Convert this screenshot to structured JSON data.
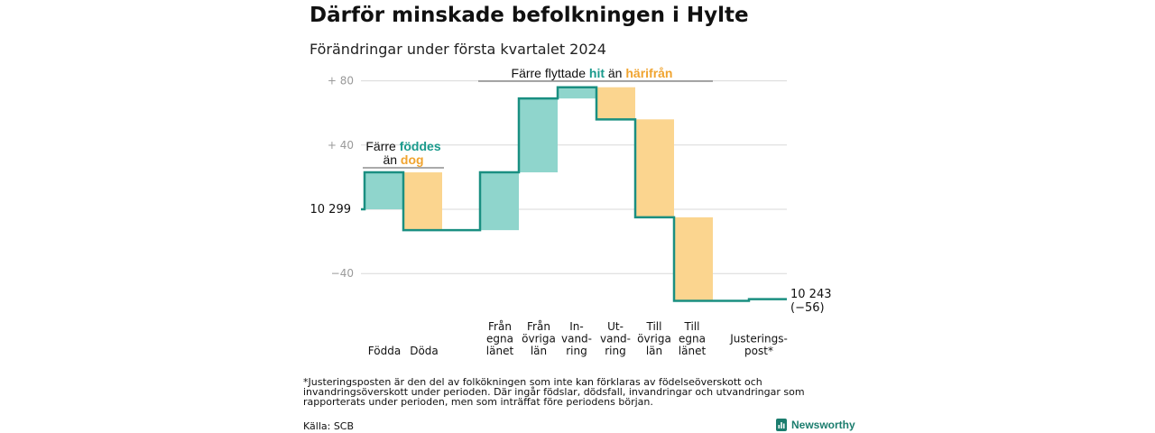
{
  "title": "Därför minskade befolkningen i Hylte",
  "subtitle": "Förändringar under första kvartalet 2024",
  "chart_data": {
    "type": "waterfall",
    "start_value": 10299,
    "start_label": "10  299",
    "yaxis_ticks": [
      {
        "value": 80,
        "label": "+  80"
      },
      {
        "value": 40,
        "label": "+  40"
      },
      {
        "value": -40,
        "label": "−40"
      }
    ],
    "ylim": [
      -56,
      80
    ],
    "grid": true,
    "steps": [
      {
        "name": "Födda",
        "label_lines": [
          "Födda"
        ],
        "delta": 23,
        "kind": "in"
      },
      {
        "name": "Döda",
        "label_lines": [
          "Döda"
        ],
        "delta": -36,
        "kind": "out"
      },
      {
        "name": "Från egna länet",
        "label_lines": [
          "Från",
          "egna",
          "länet"
        ],
        "delta": 36,
        "kind": "in"
      },
      {
        "name": "Från övriga län",
        "label_lines": [
          "Från",
          "övriga",
          "län"
        ],
        "delta": 46,
        "kind": "in"
      },
      {
        "name": "Invandring",
        "label_lines": [
          "In-",
          "vand-",
          "ring"
        ],
        "delta": 7,
        "kind": "in"
      },
      {
        "name": "Utvandring",
        "label_lines": [
          "Ut-",
          "vand-",
          "ring"
        ],
        "delta": -20,
        "kind": "out"
      },
      {
        "name": "Till övriga län",
        "label_lines": [
          "Till",
          "övriga",
          "län"
        ],
        "delta": -61,
        "kind": "out"
      },
      {
        "name": "Till egna länet",
        "label_lines": [
          "Till",
          "egna",
          "länet"
        ],
        "delta": -52,
        "kind": "out"
      },
      {
        "name": "Justeringspost*",
        "label_lines": [
          "Justerings-",
          "post*"
        ],
        "delta": 1,
        "kind": "adjust"
      }
    ],
    "end_label_lines": [
      "10 243",
      "(−56)"
    ],
    "annotations": [
      {
        "lines": [
          [
            {
              "t": "Färre ",
              "c": "plain"
            },
            {
              "t": "föddes",
              "c": "teal"
            }
          ],
          [
            {
              "t": "än ",
              "c": "plain"
            },
            {
              "t": "dog",
              "c": "orange"
            }
          ]
        ]
      },
      {
        "lines": [
          [
            {
              "t": "Färre flyttade ",
              "c": "plain"
            },
            {
              "t": "hit",
              "c": "teal"
            },
            {
              "t": "  än ",
              "c": "plain"
            },
            {
              "t": "härifrån",
              "c": "orange"
            }
          ]
        ]
      }
    ],
    "colors": {
      "in": "#8fd5cc",
      "out": "#fbd58f",
      "line": "#1a8f81",
      "grid": "#d9d9d9"
    }
  },
  "footnote": "*Justeringsposten är den del av folkökningen som inte kan förklaras av födelseöverskott och invandringsöverskott under perioden. Där ingår födslar, dödsfall, invandringar och utvandringar som rapporterats under perioden, men som inträffat före periodens början.",
  "source": "Källa: SCB",
  "brand": {
    "name": "Newsworthy",
    "icon": "bar-chart-icon"
  }
}
